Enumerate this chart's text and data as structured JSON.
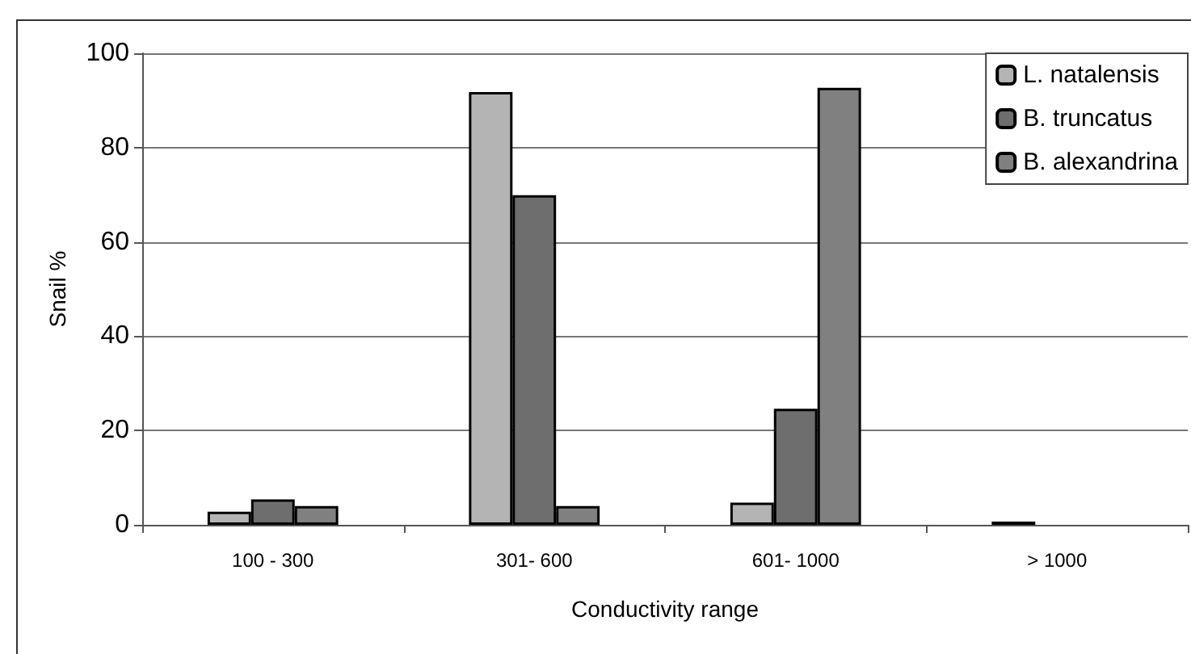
{
  "chart_data": {
    "type": "bar",
    "xlabel": "Conductivity range",
    "ylabel": "Snail %",
    "categories": [
      "100 - 300",
      "301- 600",
      "601- 1000",
      "> 1000"
    ],
    "series": [
      {
        "name": "L. natalensis",
        "color": "#b4b4b4",
        "values": [
          2.8,
          91.8,
          4.7,
          0.7
        ]
      },
      {
        "name": "B. truncatus",
        "color": "#6e6e6e",
        "values": [
          5.4,
          69.9,
          24.6,
          0
        ]
      },
      {
        "name": "B. alexandrina",
        "color": "#808080",
        "values": [
          4.0,
          4.0,
          92.7,
          0
        ]
      }
    ],
    "ylim": [
      0,
      100
    ],
    "yticks": [
      0,
      20,
      40,
      60,
      80,
      100
    ],
    "grid": "y",
    "legend": "top right"
  }
}
